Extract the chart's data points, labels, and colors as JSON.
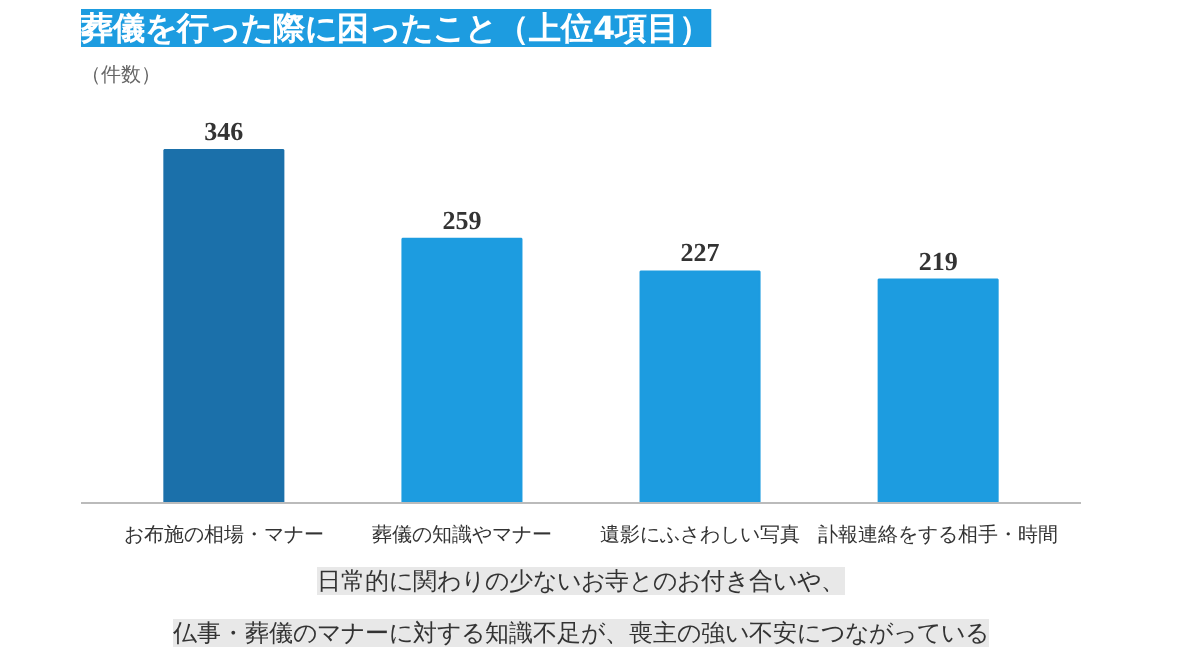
{
  "chart_data": {
    "type": "bar",
    "title": "葬儀を行った際に困ったこと（上位4項目）",
    "ylabel": "（件数）",
    "categories": [
      "お布施の相場・マナー",
      "葬儀の知識やマナー",
      "遺影にふさわしい写真",
      "訃報連絡をする相手・時間"
    ],
    "values": [
      346,
      259,
      227,
      219
    ],
    "colors": [
      "#1b70aa",
      "#1d9ce0",
      "#1d9ce0",
      "#1d9ce0"
    ],
    "data_labels": true,
    "grid": false,
    "annotations": [
      "日常的に関わりの少ないお寺とのお付き合いや、",
      "仏事・葬儀のマナーに対する知識不足が、喪主の強い不安につながっている"
    ]
  }
}
